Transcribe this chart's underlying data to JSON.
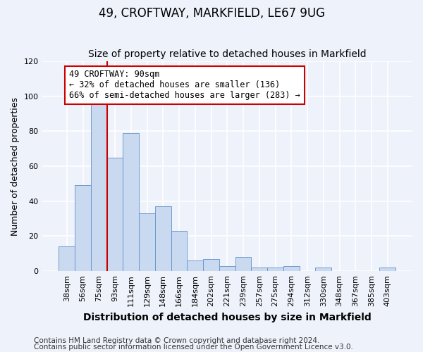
{
  "title": "49, CROFTWAY, MARKFIELD, LE67 9UG",
  "subtitle": "Size of property relative to detached houses in Markfield",
  "xlabel": "Distribution of detached houses by size in Markfield",
  "ylabel": "Number of detached properties",
  "bar_labels": [
    "38sqm",
    "56sqm",
    "75sqm",
    "93sqm",
    "111sqm",
    "129sqm",
    "148sqm",
    "166sqm",
    "184sqm",
    "202sqm",
    "221sqm",
    "239sqm",
    "257sqm",
    "275sqm",
    "294sqm",
    "312sqm",
    "330sqm",
    "348sqm",
    "367sqm",
    "385sqm",
    "403sqm"
  ],
  "bar_values": [
    14,
    49,
    97,
    65,
    79,
    33,
    37,
    23,
    6,
    7,
    3,
    8,
    2,
    2,
    3,
    0,
    2,
    0,
    0,
    0,
    2
  ],
  "bar_color": "#c9d9f0",
  "bar_edge_color": "#6090c8",
  "bar_width": 1.0,
  "ylim": [
    0,
    120
  ],
  "yticks": [
    0,
    20,
    40,
    60,
    80,
    100,
    120
  ],
  "annotation_text": "49 CROFTWAY: 90sqm\n← 32% of detached houses are smaller (136)\n66% of semi-detached houses are larger (283) →",
  "annotation_box_color": "#ffffff",
  "annotation_box_edge": "#cc0000",
  "vline_color": "#cc0000",
  "footer1": "Contains HM Land Registry data © Crown copyright and database right 2024.",
  "footer2": "Contains public sector information licensed under the Open Government Licence v3.0.",
  "background_color": "#eef2fb",
  "plot_bg_color": "#eef2fb",
  "grid_color": "#ffffff",
  "title_fontsize": 12,
  "subtitle_fontsize": 10,
  "xlabel_fontsize": 10,
  "ylabel_fontsize": 9,
  "tick_fontsize": 8,
  "footer_fontsize": 7.5
}
